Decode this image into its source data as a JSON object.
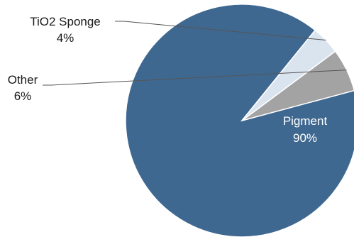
{
  "chart_data": {
    "type": "pie",
    "title": "",
    "start_angle_deg": 51,
    "direction": "counterclockwise",
    "slices": [
      {
        "name": "Pigment",
        "value": 90,
        "label": "Pigment",
        "value_label": "90%",
        "color": "#3f6890",
        "label_color": "#ffffff",
        "label_placement": "inside"
      },
      {
        "name": "Other",
        "value": 6,
        "label": "Other",
        "value_label": "6%",
        "color": "#a3a3a3",
        "label_color": "#1a1a1a",
        "label_placement": "outside-left"
      },
      {
        "name": "TiO2 Sponge",
        "value": 4,
        "label": "TiO2 Sponge",
        "value_label": "4%",
        "color": "#dae4ef",
        "label_color": "#1a1a1a",
        "label_placement": "outside-top"
      }
    ]
  }
}
